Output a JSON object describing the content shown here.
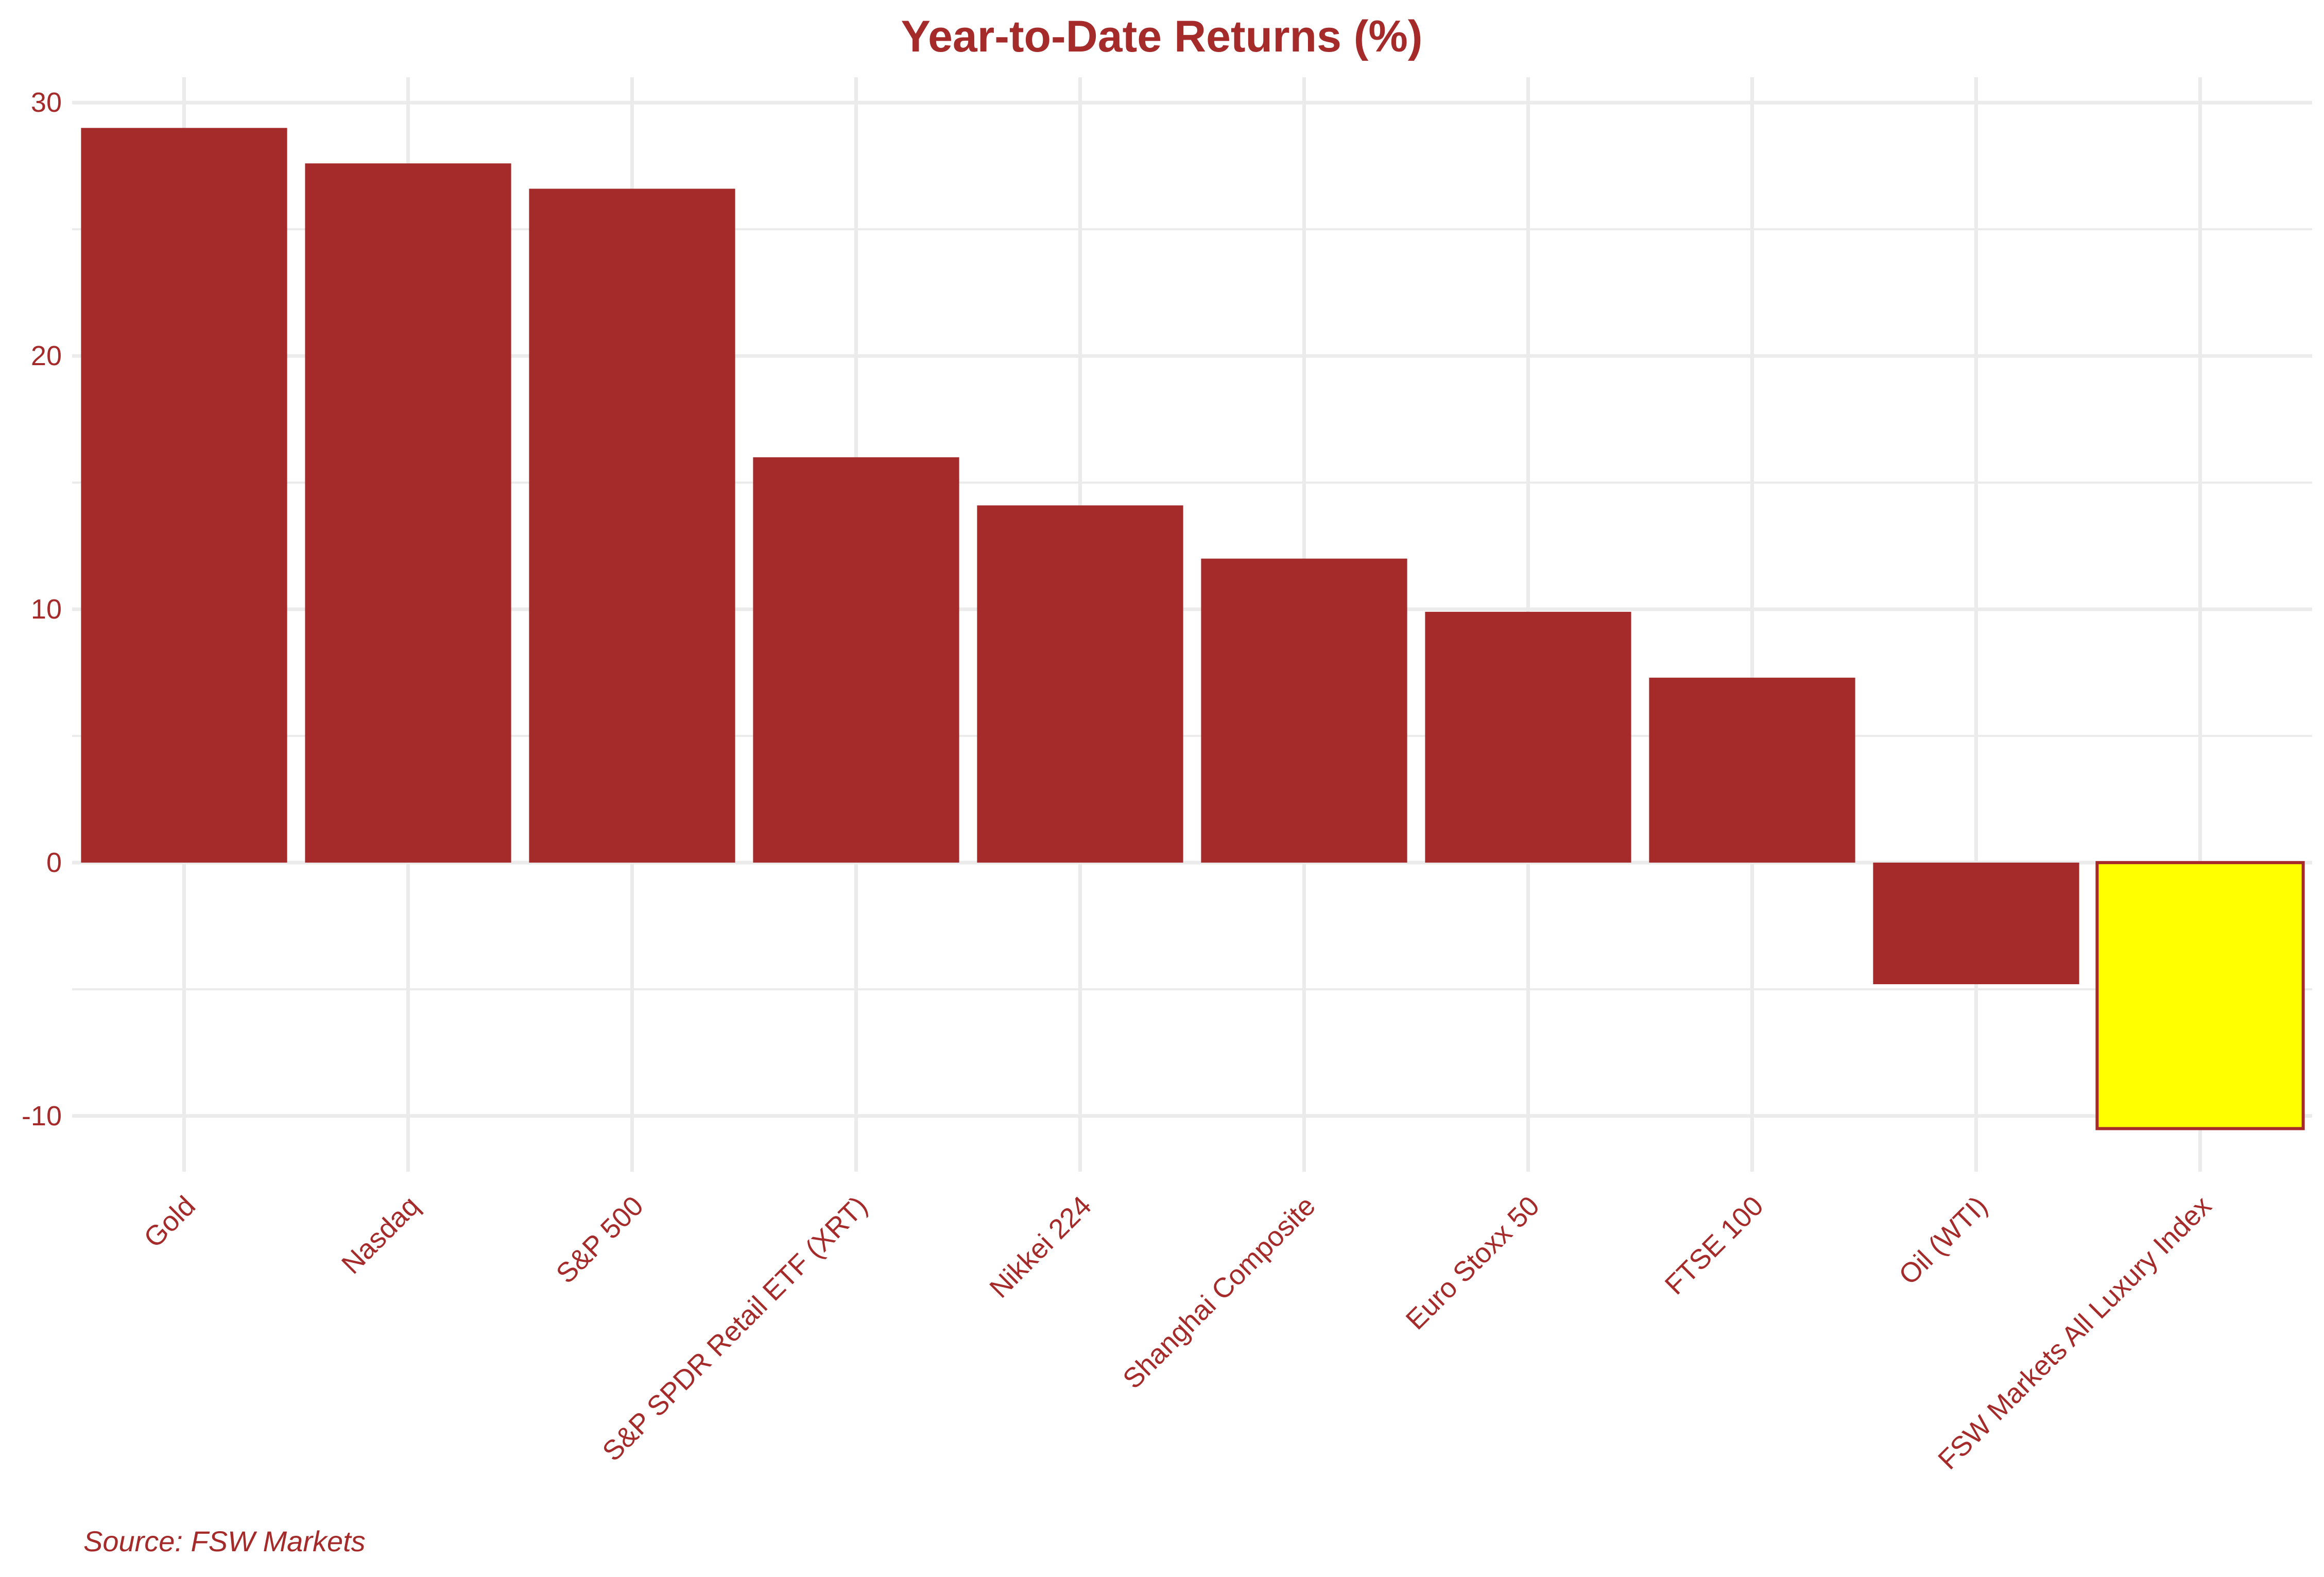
{
  "chart_data": {
    "type": "bar",
    "title": "Year-to-Date Returns (%)",
    "xlabel": "",
    "ylabel": "",
    "caption": "Source: FSW Markets",
    "categories": [
      "Gold",
      "Nasdaq",
      "S&P 500",
      "S&P SPDR Retail ETF (XRT)",
      "Nikkei 224",
      "Shanghai Composite",
      "Euro Stoxx 50",
      "FTSE 100",
      "Oil (WTI)",
      "FSW Markets All Luxury Index"
    ],
    "values": [
      29.0,
      27.6,
      26.6,
      16.0,
      14.1,
      12.0,
      9.9,
      7.3,
      -4.8,
      -10.5
    ],
    "highlight_index": 9,
    "ylim": [
      -12.2,
      31.0
    ],
    "yticks": [
      -10,
      0,
      10,
      20,
      30
    ],
    "ytick_labels": [
      "-10",
      "0",
      "10",
      "20",
      "30"
    ],
    "grid": true,
    "legend": "none",
    "colors": {
      "bar": "#a52a2a",
      "highlight_fill": "#ffff00",
      "highlight_stroke": "#a52a2a",
      "text": "#a52a2a",
      "grid": "#ebebeb"
    }
  }
}
